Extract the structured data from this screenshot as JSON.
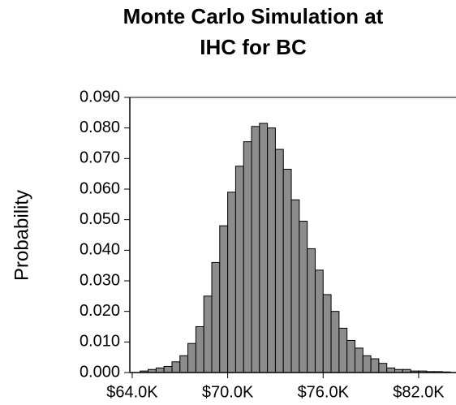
{
  "chart_data": {
    "type": "histogram",
    "title": [
      "Monte Carlo Simulation at",
      "IHC for BC"
    ],
    "y_label": "Probability",
    "color": "#8c8c8c",
    "bins": [
      64.5,
      65.0,
      65.5,
      66.0,
      66.5,
      67.0,
      67.5,
      68.0,
      68.5,
      69.0,
      69.5,
      70.0,
      70.5,
      71.0,
      71.5,
      72.0,
      72.5,
      73.0,
      73.5,
      74.0,
      74.5,
      75.0,
      75.5,
      76.0,
      76.5,
      77.0,
      77.5,
      78.0,
      78.5,
      79.0,
      79.5,
      80.0,
      80.5,
      81.0,
      81.5,
      82.0,
      82.5,
      83.0,
      83.5,
      84.0
    ],
    "values": [
      0.0005,
      0.001,
      0.0015,
      0.002,
      0.0035,
      0.0055,
      0.0095,
      0.015,
      0.025,
      0.036,
      0.048,
      0.059,
      0.0675,
      0.0755,
      0.0805,
      0.0815,
      0.08,
      0.073,
      0.0665,
      0.0565,
      0.0495,
      0.0405,
      0.0335,
      0.0255,
      0.02,
      0.0145,
      0.0105,
      0.008,
      0.0055,
      0.0045,
      0.003,
      0.0015,
      0.001,
      0.001,
      0.0005,
      0.0005,
      0.0003,
      0.0003,
      0.0002
    ],
    "xlim": [
      63.85,
      84.35
    ],
    "ylim": [
      0,
      0.09
    ],
    "xticks": [
      {
        "value": 64,
        "label": "$64.0K"
      },
      {
        "value": 70,
        "label": "$70.0K"
      },
      {
        "value": 76,
        "label": "$76.0K"
      },
      {
        "value": 82,
        "label": "$82.0K"
      }
    ],
    "yticks": [
      {
        "value": 0,
        "label": "0.000"
      },
      {
        "value": 0.01,
        "label": "0.010"
      },
      {
        "value": 0.02,
        "label": "0.020"
      },
      {
        "value": 0.03,
        "label": "0.030"
      },
      {
        "value": 0.04,
        "label": "0.040"
      },
      {
        "value": 0.05,
        "label": "0.050"
      },
      {
        "value": 0.06,
        "label": "0.060"
      },
      {
        "value": 0.07,
        "label": "0.070"
      },
      {
        "value": 0.08,
        "label": "0.080"
      },
      {
        "value": 0.09,
        "label": "0.090"
      }
    ]
  }
}
